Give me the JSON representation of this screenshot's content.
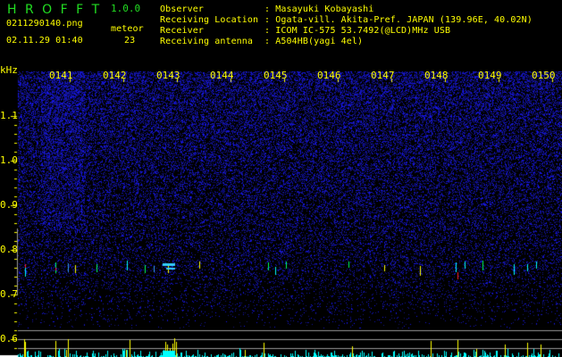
{
  "app": {
    "name": "H R O F F T",
    "version": "1.0.0"
  },
  "file": {
    "name": "0211290140.png",
    "datetime": "02.11.29 01:40"
  },
  "meteor": {
    "label": "meteor",
    "count": "23"
  },
  "info": [
    {
      "label": "Observer",
      "value": ": Masayuki Kobayashi"
    },
    {
      "label": "Receiving Location",
      "value": ": Ogata-vill. Akita-Pref. JAPAN (139.96E, 40.02N)"
    },
    {
      "label": "Receiver",
      "value": ": ICOM IC-575 53.7492(@LCD)MHz USB"
    },
    {
      "label": "Receiving antenna",
      "value": ": A504HB(yagi 4el)"
    }
  ],
  "spectrogram": {
    "y_unit": "kHz",
    "y_ticks": [
      "1.1",
      "1.0",
      "0.9",
      "0.8",
      "0.7",
      "0.6"
    ],
    "time_ticks": [
      "0141",
      "0142",
      "0143",
      "0144",
      "0145",
      "0146",
      "0147",
      "0148",
      "0149",
      "0150"
    ],
    "colors": {
      "background": "#000000",
      "noise": "#1a1aff",
      "text": "#ffff00",
      "histogram": "#00ffff",
      "histogram_peak": "#ffff00"
    }
  }
}
